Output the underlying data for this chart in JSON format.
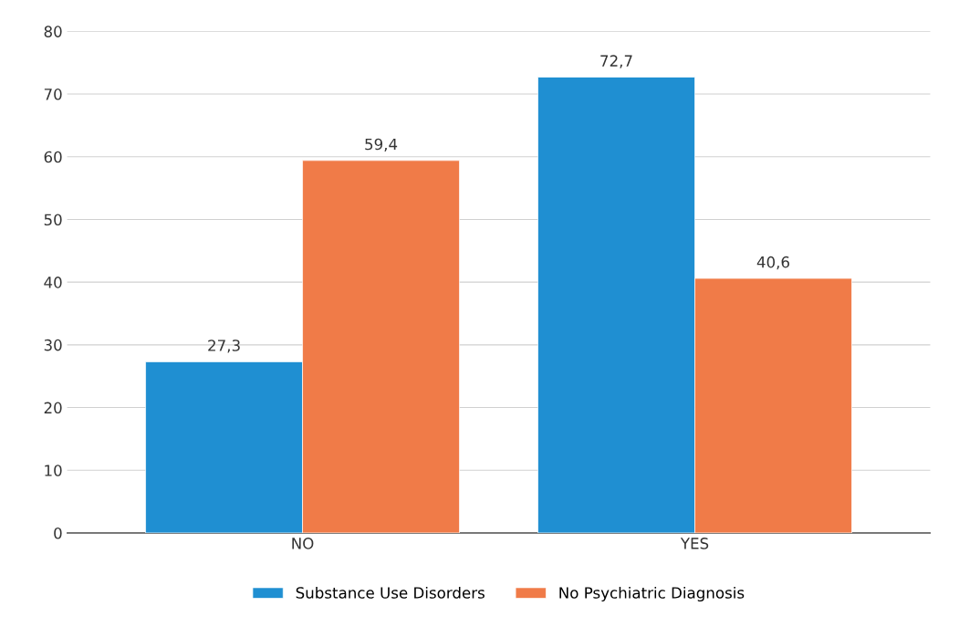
{
  "chart_data": {
    "type": "bar",
    "categories": [
      "NO",
      "YES"
    ],
    "series": [
      {
        "name": "Substance Use Disorders",
        "color": "#1f8fd2",
        "values": [
          27.3,
          72.7
        ],
        "value_labels": [
          "27,3",
          "72,7"
        ]
      },
      {
        "name": "No Psychiatric Diagnosis",
        "color": "#f07b48",
        "values": [
          59.4,
          40.6
        ],
        "value_labels": [
          "59,4",
          "40,6"
        ]
      }
    ],
    "ylim": [
      0,
      80
    ],
    "yticks": [
      0,
      10,
      20,
      30,
      40,
      50,
      60,
      70,
      80
    ],
    "grid": "y",
    "legend": "bottom"
  }
}
